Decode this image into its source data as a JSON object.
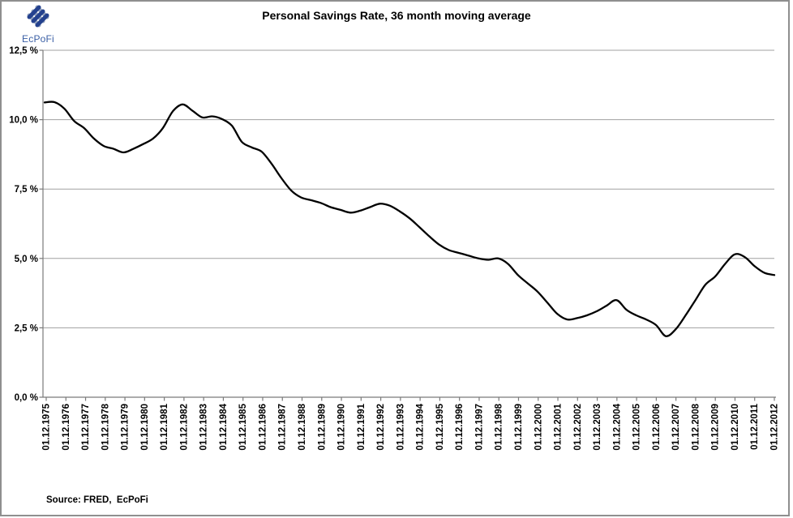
{
  "logo": {
    "text": "EcPoFi",
    "text_color": "#3A5FA5",
    "stripe_blue": "#24418E",
    "stripe_gray": "#93A2BC"
  },
  "title": "Personal Savings Rate, 36 month moving average",
  "source_note": "Source: FRED,  EcPoFi",
  "chart_data": {
    "type": "line",
    "title": "Personal Savings Rate, 36 month moving average",
    "xlabel": "",
    "ylabel": "",
    "ylim": [
      0,
      12.5
    ],
    "grid": true,
    "legend_position": "none",
    "y_ticks": [
      {
        "label": "12,5 %",
        "value": 12.5
      },
      {
        "label": "10,0 %",
        "value": 10.0
      },
      {
        "label": "7,5 %",
        "value": 7.5
      },
      {
        "label": "5,0 %",
        "value": 5.0
      },
      {
        "label": "2,5 %",
        "value": 2.5
      },
      {
        "label": "0,0 %",
        "value": 0.0
      }
    ],
    "x_labels": [
      "01.12.1975",
      "01.12.1976",
      "01.12.1977",
      "01.12.1978",
      "01.12.1979",
      "01.12.1980",
      "01.12.1981",
      "01.12.1982",
      "01.12.1983",
      "01.12.1984",
      "01.12.1985",
      "01.12.1986",
      "01.12.1987",
      "01.12.1988",
      "01.12.1989",
      "01.12.1990",
      "01.12.1991",
      "01.12.1992",
      "01.12.1993",
      "01.12.1994",
      "01.12.1995",
      "01.12.1996",
      "01.12.1997",
      "01.12.1998",
      "01.12.1999",
      "01.12.2000",
      "01.12.2001",
      "01.12.2002",
      "01.12.2003",
      "01.12.2004",
      "01.12.2005",
      "01.12.2006",
      "01.12.2007",
      "01.12.2008",
      "01.12.2009",
      "01.12.2010",
      "01.12.2011",
      "01.12.2012"
    ],
    "colors": {
      "line": "#000000",
      "grid": "#A0A0A0",
      "axis": "#7A7A7A"
    },
    "series": [
      {
        "name": "Personal Savings Rate, 36 month moving average",
        "x": [
          "1975-12",
          "1976-06",
          "1976-12",
          "1977-06",
          "1977-12",
          "1978-06",
          "1978-12",
          "1979-06",
          "1979-12",
          "1980-06",
          "1980-12",
          "1981-06",
          "1981-12",
          "1982-06",
          "1982-12",
          "1983-06",
          "1983-12",
          "1984-06",
          "1984-12",
          "1985-06",
          "1985-12",
          "1986-06",
          "1986-12",
          "1987-06",
          "1987-12",
          "1988-06",
          "1988-12",
          "1989-06",
          "1989-12",
          "1990-06",
          "1990-12",
          "1991-06",
          "1991-12",
          "1992-06",
          "1992-12",
          "1993-06",
          "1993-12",
          "1994-06",
          "1994-12",
          "1995-06",
          "1995-12",
          "1996-06",
          "1996-12",
          "1997-06",
          "1997-12",
          "1998-06",
          "1998-12",
          "1999-06",
          "1999-12",
          "2000-06",
          "2000-12",
          "2001-06",
          "2001-12",
          "2002-06",
          "2002-12",
          "2003-06",
          "2003-12",
          "2004-06",
          "2004-12",
          "2005-06",
          "2005-12",
          "2006-06",
          "2006-12",
          "2007-06",
          "2007-12",
          "2008-06",
          "2008-12",
          "2009-06",
          "2009-12",
          "2010-06",
          "2010-12",
          "2011-06",
          "2011-12",
          "2012-06",
          "2012-12"
        ],
        "values": [
          10.62,
          10.63,
          10.4,
          9.95,
          9.7,
          9.32,
          9.05,
          8.95,
          8.82,
          8.95,
          9.12,
          9.32,
          9.7,
          10.3,
          10.55,
          10.32,
          10.08,
          10.12,
          10.02,
          9.78,
          9.2,
          9.0,
          8.85,
          8.42,
          7.9,
          7.45,
          7.2,
          7.1,
          7.0,
          6.85,
          6.75,
          6.65,
          6.72,
          6.85,
          6.97,
          6.9,
          6.7,
          6.45,
          6.13,
          5.8,
          5.5,
          5.3,
          5.2,
          5.1,
          5.0,
          4.95,
          5.0,
          4.8,
          4.4,
          4.1,
          3.8,
          3.4,
          3.0,
          2.8,
          2.85,
          2.95,
          3.1,
          3.3,
          3.5,
          3.15,
          2.95,
          2.8,
          2.6,
          2.2,
          2.45,
          2.95,
          3.5,
          4.05,
          4.35,
          4.8,
          5.15,
          5.05,
          4.72,
          4.48,
          4.4
        ]
      }
    ]
  }
}
